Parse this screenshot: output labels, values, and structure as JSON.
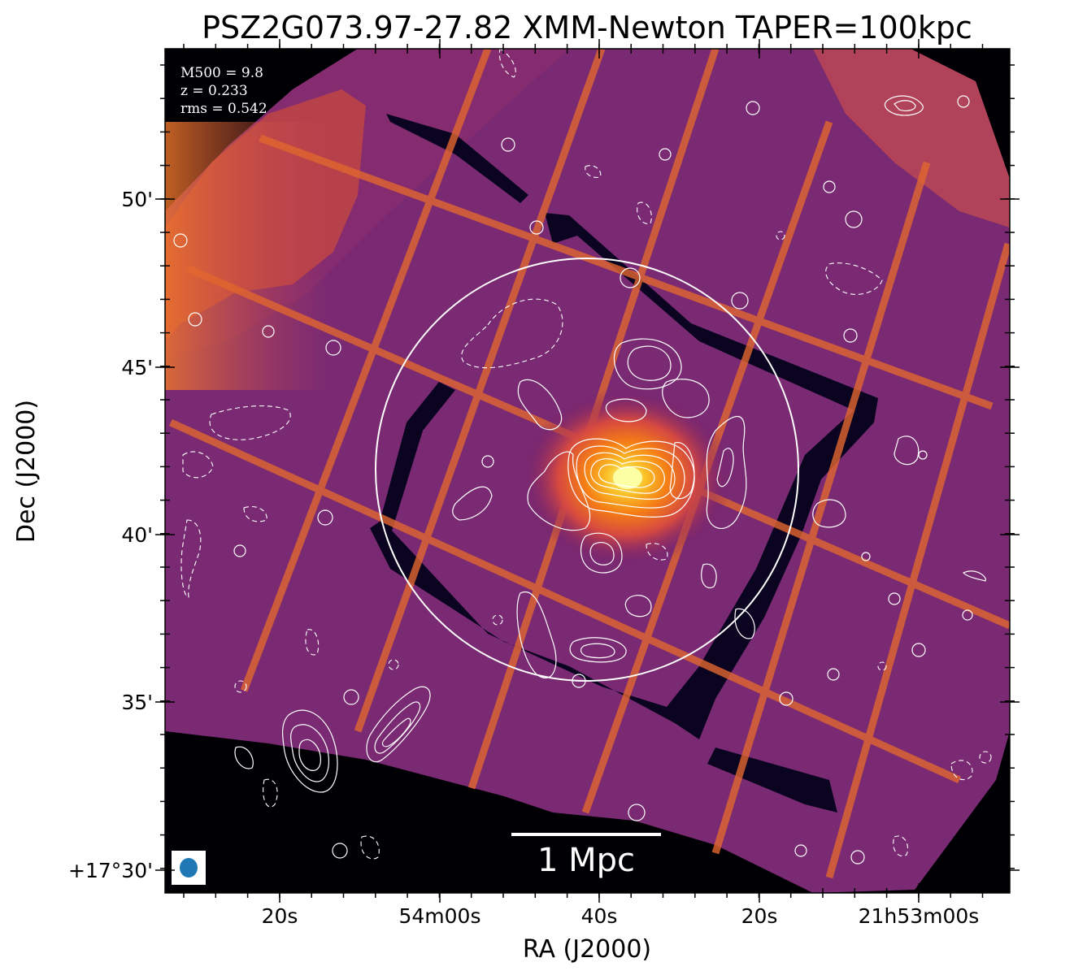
{
  "figure": {
    "title": "PSZ2G073.97-27.82 XMM-Newton TAPER=100kpc",
    "xlabel": "RA (J2000)",
    "ylabel": "Dec (J2000)",
    "info_lines": [
      "M500 = 9.8",
      "z = 0.233",
      "rms = 0.542"
    ],
    "scalebar_label": "1 Mpc",
    "x_ticks": [
      "20s",
      "54m00s",
      "40s",
      "20s",
      "21h53m00s"
    ],
    "y_ticks": [
      "50'",
      "45'",
      "40'",
      "35'",
      "+17°30'"
    ],
    "colormap": "inferno",
    "contour_color": "#ffffff",
    "beam_color": "#1f77b4",
    "beam_box_color": "#ffffff"
  }
}
